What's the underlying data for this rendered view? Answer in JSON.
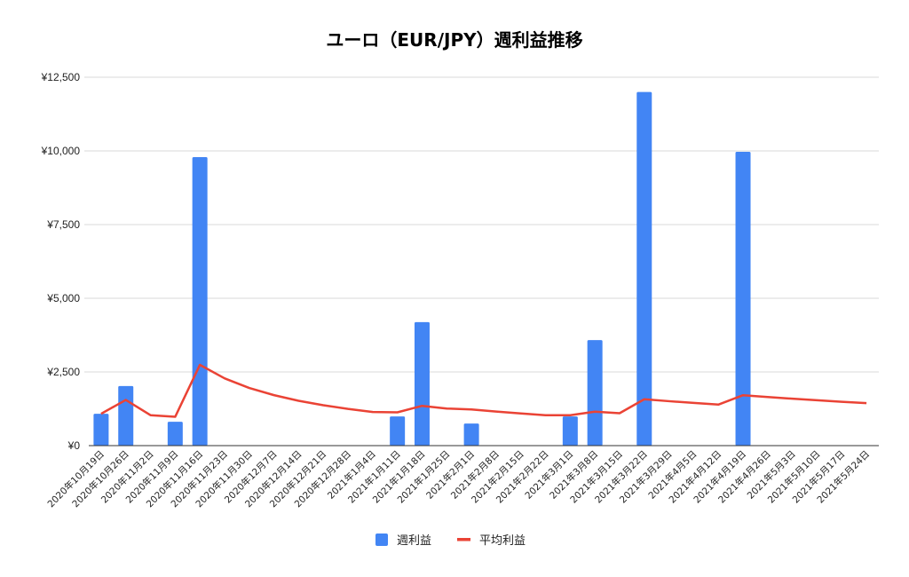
{
  "chart_data": {
    "type": "bar",
    "title": "ユーロ（EUR/JPY）週利益推移",
    "xlabel": "",
    "ylabel": "",
    "ylim": [
      0,
      12500
    ],
    "yticks": [
      0,
      2500,
      5000,
      7500,
      10000,
      12500
    ],
    "ytick_labels": [
      "¥0",
      "¥2,500",
      "¥5,000",
      "¥7,500",
      "¥10,000",
      "¥12,500"
    ],
    "grid": true,
    "legend_position": "bottom",
    "categories": [
      "2020年10月19日",
      "2020年10月26日",
      "2020年11月2日",
      "2020年11月9日",
      "2020年11月16日",
      "2020年11月23日",
      "2020年11月30日",
      "2020年12月7日",
      "2020年12月14日",
      "2020年12月21日",
      "2020年12月28日",
      "2021年1月4日",
      "2021年1月11日",
      "2021年1月18日",
      "2021年1月25日",
      "2021年2月1日",
      "2021年2月8日",
      "2021年2月15日",
      "2021年2月22日",
      "2021年3月1日",
      "2021年3月8日",
      "2021年3月15日",
      "2021年3月22日",
      "2021年3月29日",
      "2021年4月5日",
      "2021年4月12日",
      "2021年4月19日",
      "2021年4月26日",
      "2021年5月3日",
      "2021年5月10日",
      "2021年5月17日",
      "2021年5月24日"
    ],
    "series": [
      {
        "name": "週利益",
        "kind": "bar",
        "color": "#4285f4",
        "values": [
          1080,
          2020,
          0,
          810,
          9790,
          0,
          0,
          0,
          0,
          0,
          0,
          0,
          990,
          4190,
          0,
          750,
          0,
          0,
          0,
          990,
          3580,
          0,
          12000,
          0,
          0,
          0,
          9970,
          0,
          0,
          0,
          0,
          0
        ]
      },
      {
        "name": "平均利益",
        "kind": "line",
        "color": "#ea4335",
        "values": [
          1080,
          1550,
          1033,
          978,
          2740,
          2283,
          1957,
          1713,
          1522,
          1370,
          1245,
          1142,
          1130,
          1349,
          1259,
          1227,
          1155,
          1091,
          1033,
          1031,
          1152,
          1100,
          1574,
          1508,
          1448,
          1392,
          1710,
          1649,
          1592,
          1539,
          1489,
          1443
        ]
      }
    ]
  }
}
